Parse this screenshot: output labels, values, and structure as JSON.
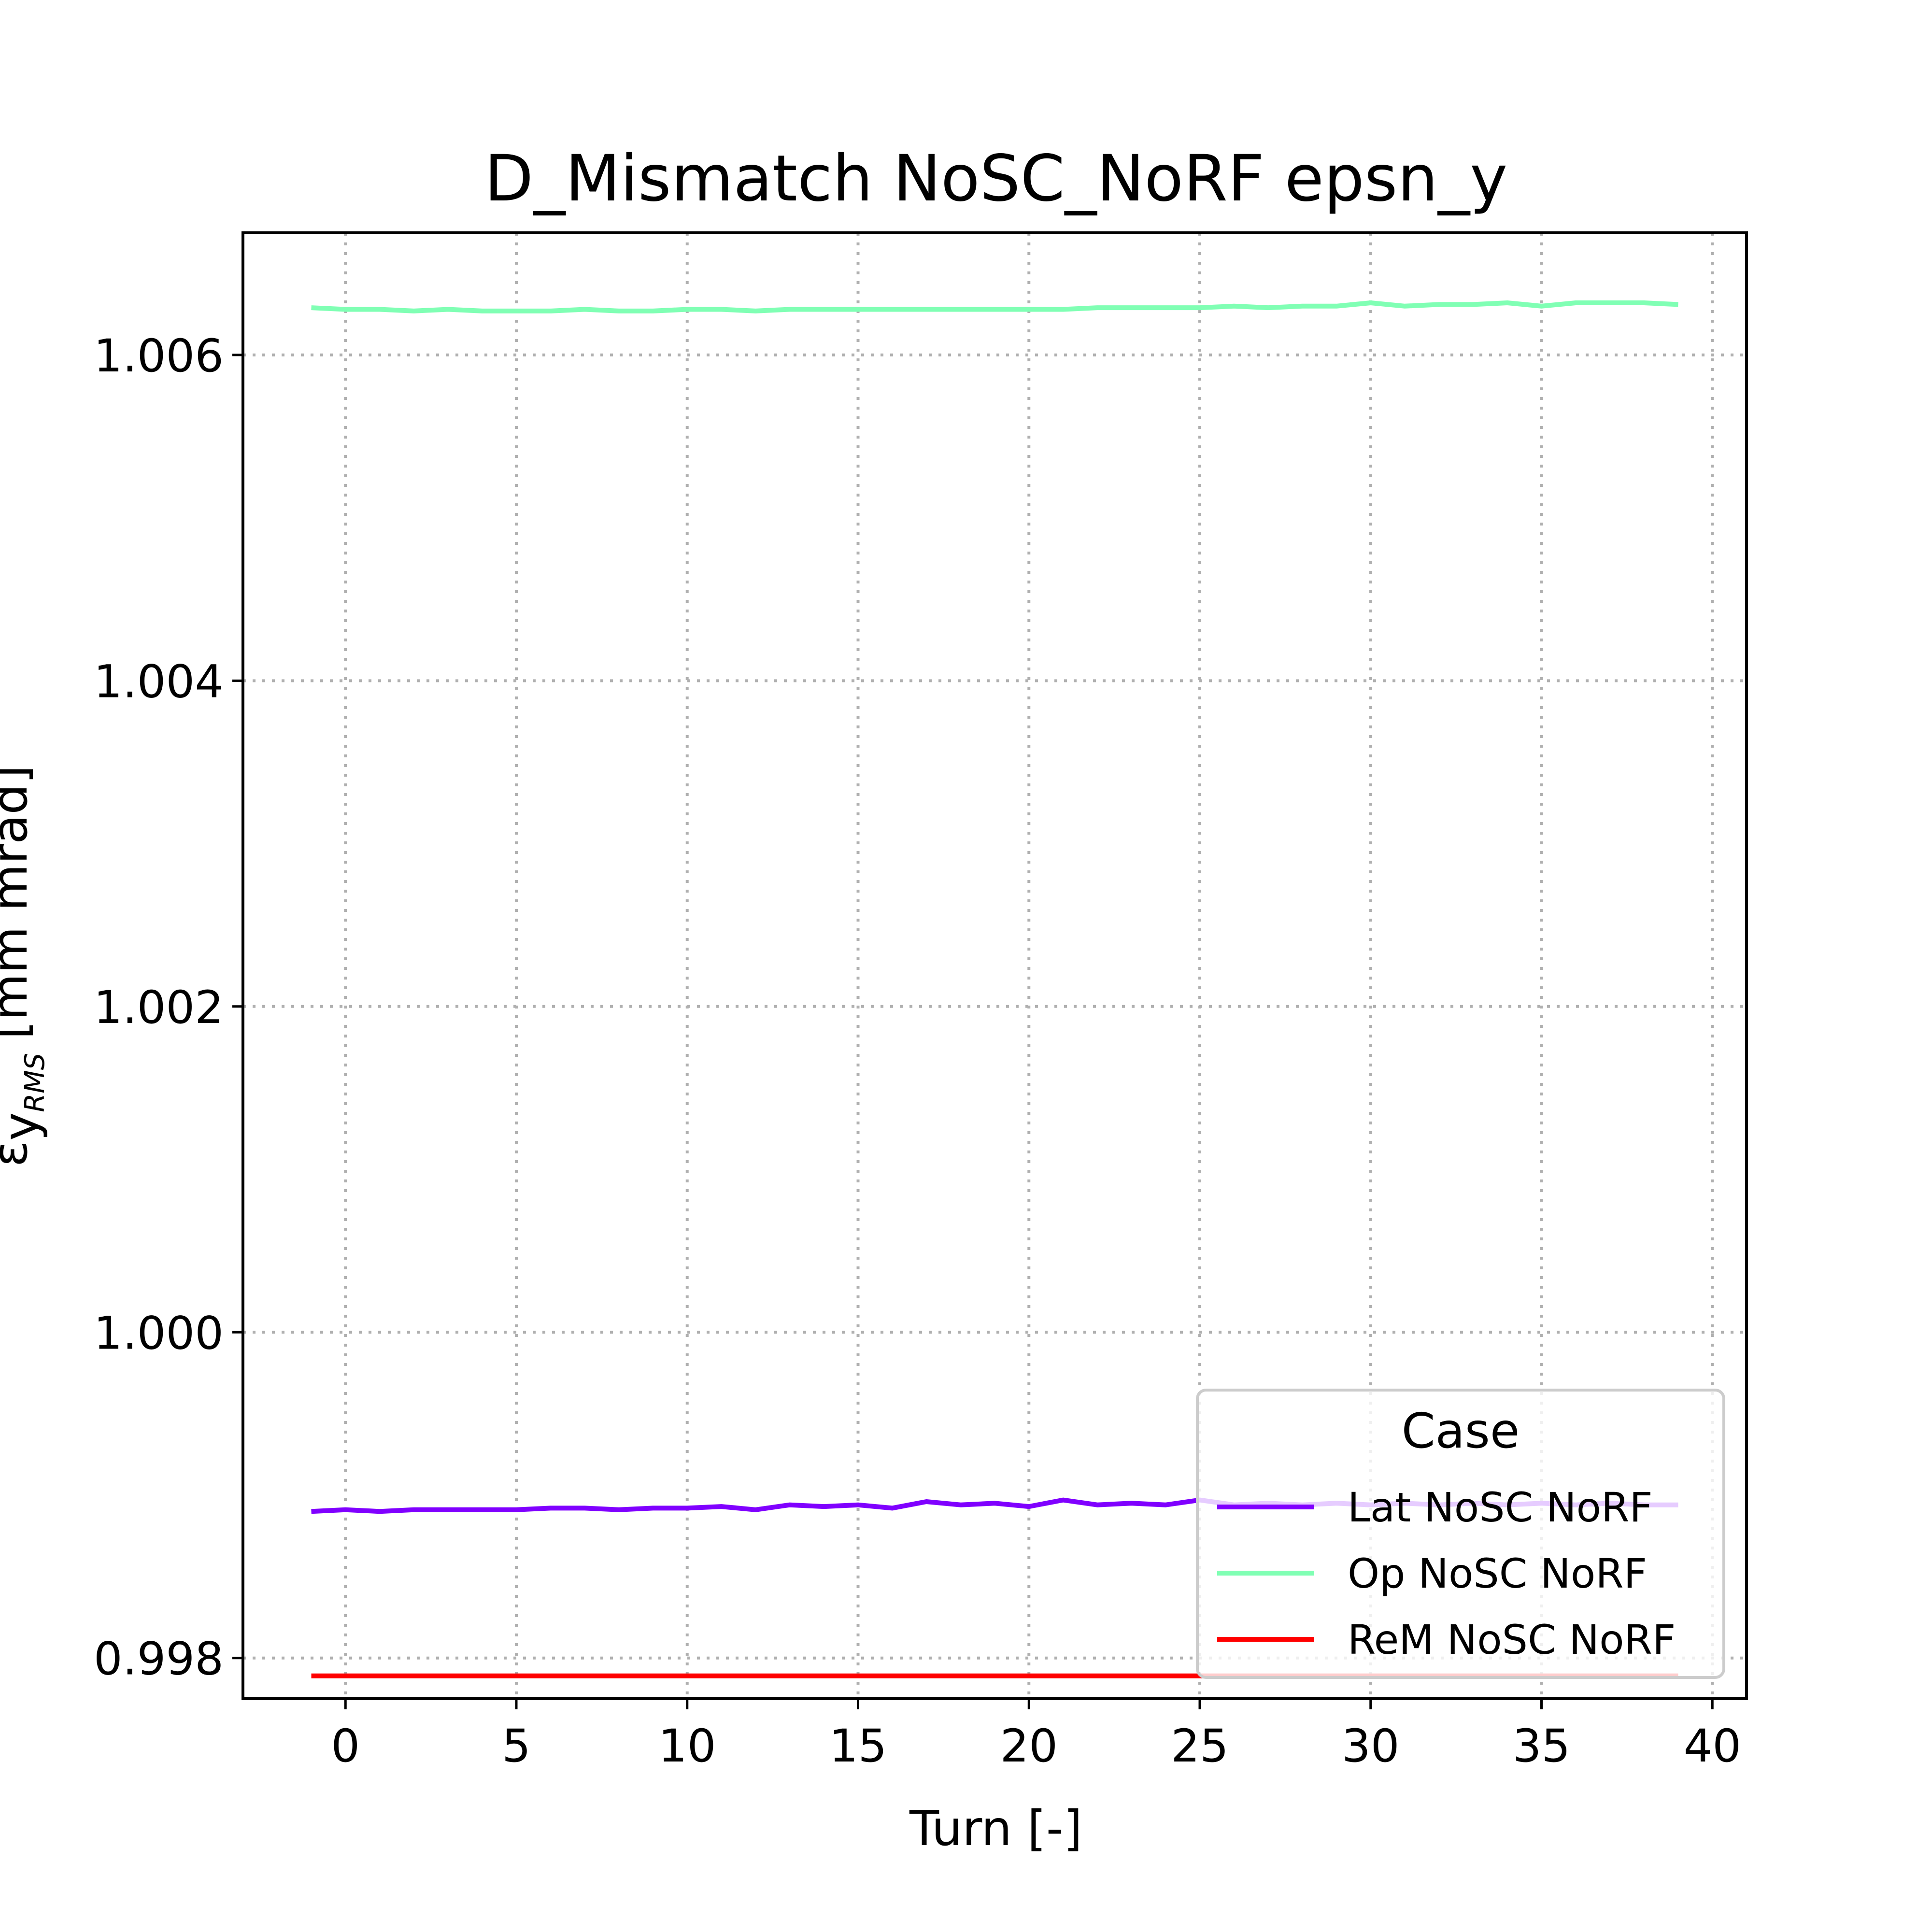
{
  "chart_data": {
    "type": "line",
    "title": "D_Mismatch NoSC_NoRF epsn_y",
    "xlabel": "Turn [-]",
    "ylabel": "ε",
    "ylabel_sub": "y",
    "ylabel_subsub": "RMS",
    "ylabel_units": "[mm mrad]",
    "xlim": [
      -3,
      41
    ],
    "ylim": [
      0.99775,
      1.00675
    ],
    "xticks": [
      0,
      5,
      10,
      15,
      20,
      25,
      30,
      35,
      40
    ],
    "xtick_labels": [
      "0",
      "5",
      "10",
      "15",
      "20",
      "25",
      "30",
      "35",
      "40"
    ],
    "yticks": [
      0.998,
      1.0,
      1.002,
      1.004,
      1.006
    ],
    "ytick_labels": [
      "0.998",
      "1.000",
      "1.002",
      "1.004",
      "1.006"
    ],
    "grid": true,
    "legend": {
      "title": "Case",
      "position": "lower-right"
    },
    "x": [
      -1,
      0,
      1,
      2,
      3,
      4,
      5,
      6,
      7,
      8,
      9,
      10,
      11,
      12,
      13,
      14,
      15,
      16,
      17,
      18,
      19,
      20,
      21,
      22,
      23,
      24,
      25,
      26,
      27,
      28,
      29,
      30,
      31,
      32,
      33,
      34,
      35,
      36,
      37,
      38,
      39
    ],
    "series": [
      {
        "name": "Lat NoSC NoRF",
        "color": "#8000ff",
        "values": [
          0.9989,
          0.99891,
          0.9989,
          0.99891,
          0.99891,
          0.99891,
          0.99891,
          0.99892,
          0.99892,
          0.99891,
          0.99892,
          0.99892,
          0.99893,
          0.99891,
          0.99894,
          0.99893,
          0.99894,
          0.99892,
          0.99896,
          0.99894,
          0.99895,
          0.99893,
          0.99897,
          0.99894,
          0.99895,
          0.99894,
          0.99897,
          0.99894,
          0.99895,
          0.99894,
          0.99895,
          0.99894,
          0.99895,
          0.99894,
          0.99895,
          0.99894,
          0.99895,
          0.99894,
          0.99895,
          0.99894,
          0.99894
        ]
      },
      {
        "name": "Op NoSC NoRF",
        "color": "#80ffb4",
        "values": [
          1.00629,
          1.00628,
          1.00628,
          1.00627,
          1.00628,
          1.00627,
          1.00627,
          1.00627,
          1.00628,
          1.00627,
          1.00627,
          1.00628,
          1.00628,
          1.00627,
          1.00628,
          1.00628,
          1.00628,
          1.00628,
          1.00628,
          1.00628,
          1.00628,
          1.00628,
          1.00628,
          1.00629,
          1.00629,
          1.00629,
          1.00629,
          1.0063,
          1.00629,
          1.0063,
          1.0063,
          1.00632,
          1.0063,
          1.00631,
          1.00631,
          1.00632,
          1.0063,
          1.00632,
          1.00632,
          1.00632,
          1.00631
        ]
      },
      {
        "name": "ReM NoSC NoRF",
        "color": "#ff0000",
        "values": [
          0.99789,
          0.99789,
          0.99789,
          0.99789,
          0.99789,
          0.99789,
          0.99789,
          0.99789,
          0.99789,
          0.99789,
          0.99789,
          0.99789,
          0.99789,
          0.99789,
          0.99789,
          0.99789,
          0.99789,
          0.99789,
          0.99789,
          0.99789,
          0.99789,
          0.99789,
          0.99789,
          0.99789,
          0.99789,
          0.99789,
          0.99789,
          0.99789,
          0.99789,
          0.99789,
          0.99789,
          0.99789,
          0.99789,
          0.99789,
          0.99789,
          0.99789,
          0.99789,
          0.99789,
          0.99789,
          0.99789,
          0.99789
        ]
      }
    ]
  }
}
